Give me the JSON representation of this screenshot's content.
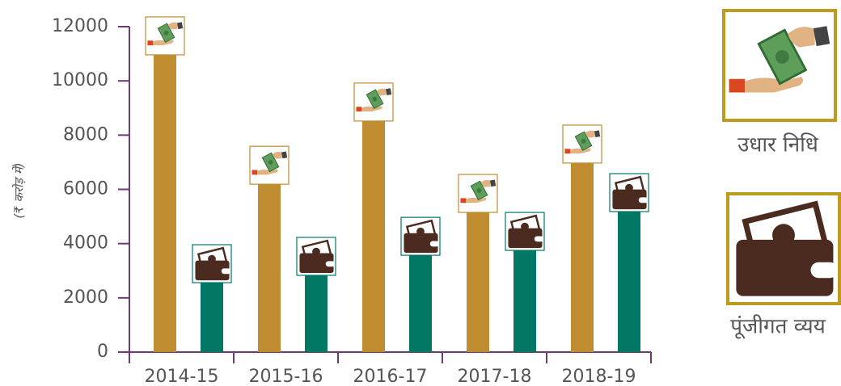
{
  "chart_data": {
    "type": "bar",
    "y_label": "(₹ करोड़ में)",
    "categories": [
      "2014-15",
      "2015-16",
      "2016-17",
      "2017-18",
      "2018-19"
    ],
    "series": [
      {
        "name": "उधार निधि",
        "color": "#bf8c2f",
        "values": [
          10960,
          6190,
          8520,
          5150,
          6970
        ]
      },
      {
        "name": "पूंजीगत व्यय",
        "color": "#017764",
        "values": [
          2560,
          2830,
          3570,
          3750,
          5180
        ]
      }
    ],
    "ylim": [
      0,
      12000
    ],
    "yticks": [
      0,
      2000,
      4000,
      6000,
      8000,
      10000,
      12000
    ],
    "axis_color": "#6d3b73"
  }
}
